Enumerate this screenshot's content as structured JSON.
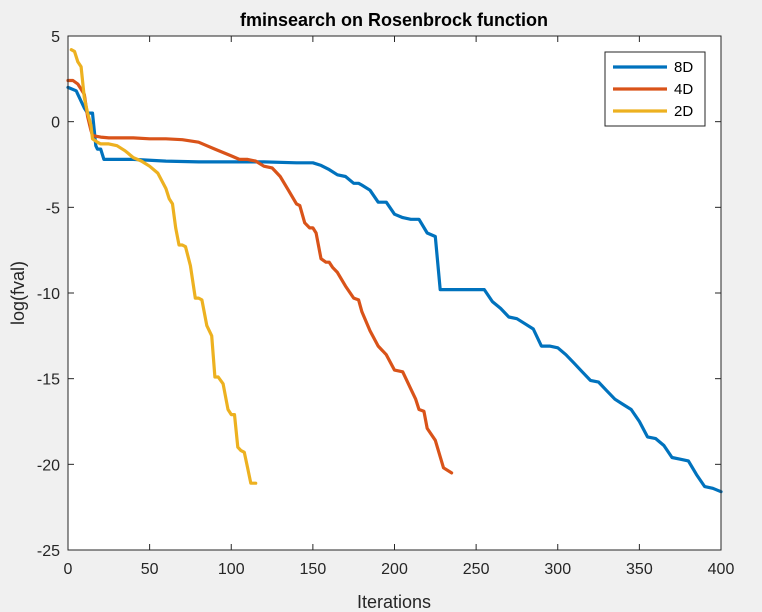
{
  "chart_data": {
    "type": "line",
    "title": "fminsearch on Rosenbrock function",
    "xlabel": "Iterations",
    "ylabel": "log(fval)",
    "xlim": [
      0,
      400
    ],
    "ylim": [
      -25,
      5
    ],
    "xticks": [
      0,
      50,
      100,
      150,
      200,
      250,
      300,
      350,
      400
    ],
    "yticks": [
      5,
      0,
      -5,
      -10,
      -15,
      -20,
      -25
    ],
    "grid": false,
    "legend_position": "top-right",
    "series": [
      {
        "name": "8D",
        "color": "#0072bd",
        "x": [
          0,
          5,
          10,
          12,
          15,
          17,
          18,
          20,
          22,
          25,
          40,
          60,
          80,
          100,
          120,
          140,
          150,
          155,
          160,
          165,
          170,
          175,
          178,
          180,
          185,
          190,
          195,
          200,
          205,
          210,
          215,
          220,
          225,
          228,
          230,
          235,
          240,
          245,
          250,
          255,
          260,
          265,
          270,
          275,
          280,
          285,
          290,
          295,
          300,
          305,
          310,
          315,
          320,
          325,
          330,
          335,
          340,
          345,
          350,
          355,
          360,
          365,
          370,
          375,
          380,
          385,
          390,
          395,
          400
        ],
        "y": [
          2.0,
          1.8,
          0.8,
          0.5,
          0.5,
          -1.4,
          -1.6,
          -1.6,
          -2.2,
          -2.2,
          -2.2,
          -2.3,
          -2.35,
          -2.35,
          -2.35,
          -2.4,
          -2.4,
          -2.55,
          -2.8,
          -3.1,
          -3.2,
          -3.6,
          -3.6,
          -3.7,
          -4.0,
          -4.7,
          -4.7,
          -5.4,
          -5.6,
          -5.7,
          -5.7,
          -6.5,
          -6.7,
          -9.8,
          -9.8,
          -9.8,
          -9.8,
          -9.8,
          -9.8,
          -9.8,
          -10.5,
          -10.9,
          -11.4,
          -11.5,
          -11.8,
          -12.1,
          -13.1,
          -13.1,
          -13.2,
          -13.6,
          -14.1,
          -14.6,
          -15.1,
          -15.2,
          -15.7,
          -16.2,
          -16.5,
          -16.8,
          -17.5,
          -18.4,
          -18.5,
          -18.9,
          -19.6,
          -19.7,
          -19.8,
          -20.6,
          -21.3,
          -21.4,
          -21.6
        ]
      },
      {
        "name": "4D",
        "color": "#d95319",
        "x": [
          0,
          3,
          6,
          8,
          10,
          12,
          14,
          15,
          17,
          20,
          25,
          30,
          40,
          50,
          60,
          70,
          80,
          85,
          90,
          95,
          100,
          105,
          110,
          115,
          120,
          125,
          130,
          135,
          140,
          142,
          145,
          148,
          150,
          152,
          155,
          158,
          160,
          162,
          165,
          170,
          175,
          178,
          180,
          185,
          190,
          195,
          200,
          205,
          210,
          213,
          215,
          218,
          220,
          225,
          230,
          235
        ],
        "y": [
          2.4,
          2.4,
          2.2,
          1.9,
          1.6,
          0.3,
          -0.5,
          -0.8,
          -0.85,
          -0.9,
          -0.95,
          -0.95,
          -0.95,
          -1.0,
          -1.0,
          -1.05,
          -1.2,
          -1.4,
          -1.6,
          -1.8,
          -2.0,
          -2.2,
          -2.2,
          -2.3,
          -2.6,
          -2.7,
          -3.2,
          -4.0,
          -4.8,
          -4.9,
          -5.9,
          -6.2,
          -6.2,
          -6.5,
          -8.0,
          -8.2,
          -8.2,
          -8.5,
          -8.8,
          -9.6,
          -10.3,
          -10.4,
          -11.1,
          -12.2,
          -13.1,
          -13.6,
          -14.5,
          -14.6,
          -15.6,
          -16.2,
          -16.8,
          -16.9,
          -17.9,
          -18.6,
          -20.2,
          -20.5
        ]
      },
      {
        "name": "2D",
        "color": "#edb120",
        "x": [
          2,
          4,
          6,
          8,
          10,
          12,
          14,
          15,
          18,
          20,
          25,
          30,
          35,
          40,
          45,
          50,
          55,
          60,
          62,
          64,
          66,
          68,
          70,
          72,
          75,
          78,
          80,
          82,
          85,
          88,
          90,
          92,
          95,
          98,
          100,
          102,
          104,
          106,
          108,
          110,
          112,
          115
        ],
        "y": [
          4.2,
          4.1,
          3.5,
          3.2,
          1.4,
          0.5,
          -0.2,
          -1.0,
          -1.2,
          -1.3,
          -1.3,
          -1.4,
          -1.7,
          -2.1,
          -2.3,
          -2.6,
          -3.0,
          -3.9,
          -4.5,
          -4.8,
          -6.2,
          -7.2,
          -7.2,
          -7.3,
          -8.4,
          -10.3,
          -10.3,
          -10.4,
          -11.9,
          -12.5,
          -14.9,
          -14.9,
          -15.3,
          -16.8,
          -17.1,
          -17.1,
          -19.0,
          -19.2,
          -19.3,
          -20.2,
          -21.1,
          -21.1
        ]
      }
    ]
  }
}
